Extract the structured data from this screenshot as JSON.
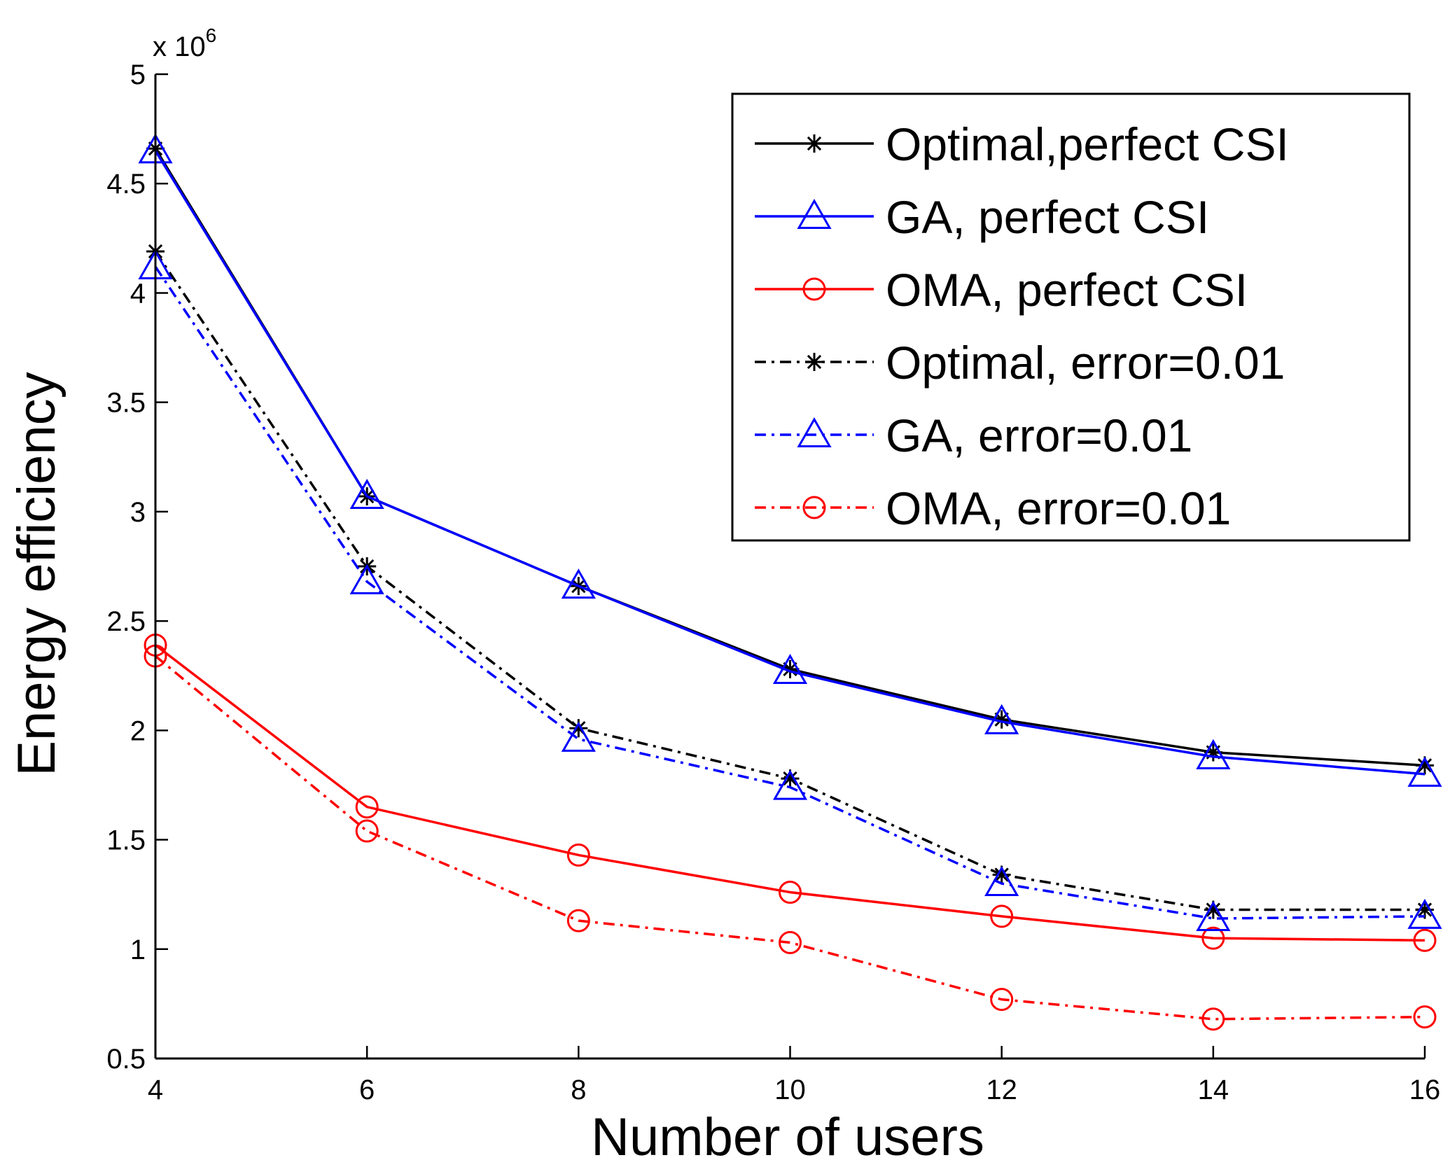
{
  "chart_data": {
    "type": "line",
    "title": "",
    "xlabel": "Number of users",
    "ylabel": "Energy efficiency",
    "y_multiplier_label": "x 10",
    "y_multiplier_exponent": "6",
    "x": [
      4,
      6,
      8,
      10,
      12,
      14,
      16
    ],
    "xlim": [
      4,
      16
    ],
    "ylim": [
      0.5,
      5
    ],
    "x_ticks": [
      "4",
      "6",
      "8",
      "10",
      "12",
      "14",
      "16"
    ],
    "y_ticks": [
      "0.5",
      "1",
      "1.5",
      "2",
      "2.5",
      "3",
      "3.5",
      "4",
      "4.5",
      "5"
    ],
    "grid": false,
    "legend_position": "top-right",
    "series": [
      {
        "name": "Optimal,perfect CSI",
        "values": [
          4.66,
          3.07,
          2.66,
          2.28,
          2.05,
          1.9,
          1.84
        ],
        "color": "#000000",
        "dash": "solid",
        "marker": "star"
      },
      {
        "name": "GA, perfect CSI",
        "values": [
          4.65,
          3.07,
          2.66,
          2.27,
          2.04,
          1.88,
          1.8
        ],
        "color": "#0000ff",
        "dash": "solid",
        "marker": "triangle"
      },
      {
        "name": "OMA, perfect CSI",
        "values": [
          2.39,
          1.65,
          1.43,
          1.26,
          1.15,
          1.05,
          1.04
        ],
        "color": "#ff0000",
        "dash": "solid",
        "marker": "circle"
      },
      {
        "name": "Optimal, error=0.01",
        "values": [
          4.19,
          2.75,
          2.01,
          1.78,
          1.34,
          1.18,
          1.18
        ],
        "color": "#000000",
        "dash": "dashdot",
        "marker": "star"
      },
      {
        "name": "GA, error=0.01",
        "values": [
          4.12,
          2.68,
          1.96,
          1.74,
          1.3,
          1.14,
          1.15
        ],
        "color": "#0000ff",
        "dash": "dashdot",
        "marker": "triangle"
      },
      {
        "name": "OMA, error=0.01",
        "values": [
          2.34,
          1.54,
          1.13,
          1.03,
          0.77,
          0.68,
          0.69
        ],
        "color": "#ff0000",
        "dash": "dashdot",
        "marker": "circle"
      }
    ]
  }
}
